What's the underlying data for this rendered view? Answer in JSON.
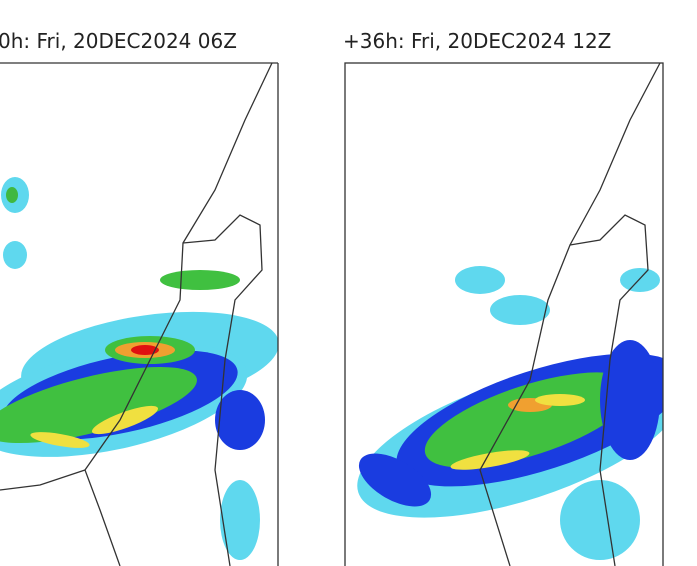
{
  "panels": [
    {
      "title": "0h: Fri, 20DEC2024 06Z"
    },
    {
      "title": "+36h: Fri, 20DEC2024 12Z"
    }
  ]
}
